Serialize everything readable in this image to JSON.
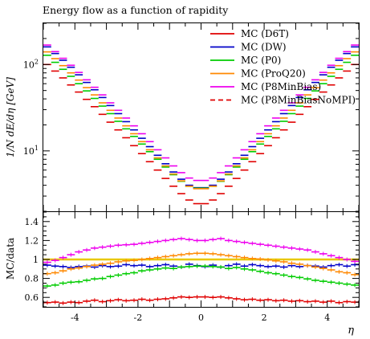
{
  "chart_data": {
    "type": "line",
    "style": "step-histogram",
    "title": "Energy flow as a function of rapidity",
    "xlabel": "η",
    "ylabel": "1/N dE/dη [GeV]",
    "ratio_ylabel": "MC/data",
    "xlim": [
      -5,
      5
    ],
    "ylim": [
      2,
      300
    ],
    "yscale": "log",
    "ratio_ylim": [
      0.5,
      1.5
    ],
    "x_ticks": [
      -4,
      -2,
      0,
      2,
      4
    ],
    "x_tick_labels": [
      "-4",
      "-2",
      "0",
      "2",
      "4"
    ],
    "y_tick_labels": [
      {
        "base": "10",
        "exp": "2",
        "value": 100
      },
      {
        "base": "10",
        "exp": "1",
        "value": 10
      }
    ],
    "ratio_ticks": [
      0.6,
      0.8,
      1.0,
      1.2,
      1.4
    ],
    "ratio_tick_labels": [
      "0.6",
      "0.8",
      "1",
      "1.2",
      "1.4"
    ],
    "grid": false,
    "legend_position": "top-right",
    "reference_line_color": "#e8c800",
    "series": [
      {
        "name": "MC (D6T)",
        "color": "#e00000",
        "dash": false,
        "x": [
          -4.875,
          -4.625,
          -4.375,
          -4.125,
          -3.875,
          -3.625,
          -3.375,
          -3.125,
          -2.875,
          -2.625,
          -2.375,
          -2.125,
          -1.875,
          -1.625,
          -1.375,
          -1.125,
          -0.875,
          -0.625,
          -0.375,
          -0.125,
          0.125,
          0.375,
          0.625,
          0.875,
          1.125,
          1.375,
          1.625,
          1.875,
          2.125,
          2.375,
          2.625,
          2.875,
          3.125,
          3.375,
          3.625,
          3.875,
          4.125,
          4.375,
          4.625,
          4.875
        ],
        "y": [
          100,
          84,
          70,
          58,
          48,
          39.5,
          32.5,
          26.5,
          21.5,
          17.5,
          14.2,
          11.5,
          9.3,
          7.5,
          6.0,
          4.8,
          3.9,
          3.2,
          2.7,
          2.45,
          2.45,
          2.7,
          3.2,
          3.9,
          4.8,
          6.0,
          7.5,
          9.3,
          11.5,
          14.2,
          17.5,
          21.5,
          26.5,
          32.5,
          39.5,
          48,
          58,
          70,
          84,
          100
        ],
        "ratio": [
          0.545,
          0.55,
          0.54,
          0.55,
          0.545,
          0.56,
          0.57,
          0.555,
          0.565,
          0.575,
          0.565,
          0.57,
          0.58,
          0.57,
          0.58,
          0.585,
          0.595,
          0.605,
          0.6,
          0.605,
          0.605,
          0.6,
          0.605,
          0.595,
          0.585,
          0.575,
          0.58,
          0.57,
          0.575,
          0.565,
          0.57,
          0.56,
          0.565,
          0.555,
          0.56,
          0.55,
          0.56,
          0.545,
          0.555,
          0.55
        ]
      },
      {
        "name": "MC (DW)",
        "color": "#0000c8",
        "dash": false,
        "x": [
          -4.875,
          -4.625,
          -4.375,
          -4.125,
          -3.875,
          -3.625,
          -3.375,
          -3.125,
          -2.875,
          -2.625,
          -2.375,
          -2.125,
          -1.875,
          -1.625,
          -1.375,
          -1.125,
          -0.875,
          -0.625,
          -0.375,
          -0.125,
          0.125,
          0.375,
          0.625,
          0.875,
          1.125,
          1.375,
          1.625,
          1.875,
          2.125,
          2.375,
          2.625,
          2.875,
          3.125,
          3.375,
          3.625,
          3.875,
          4.125,
          4.375,
          4.625,
          4.875
        ],
        "y": [
          160,
          134,
          112,
          93,
          76,
          62,
          51,
          41.5,
          33.5,
          27,
          21.8,
          17.5,
          14,
          11.2,
          8.9,
          7.1,
          5.7,
          4.7,
          4.0,
          3.75,
          3.75,
          4.0,
          4.7,
          5.7,
          7.1,
          8.9,
          11.2,
          14,
          17.5,
          21.8,
          27,
          33.5,
          41.5,
          51,
          62,
          76,
          93,
          112,
          134,
          160
        ],
        "ratio": [
          0.94,
          0.93,
          0.925,
          0.915,
          0.925,
          0.93,
          0.92,
          0.935,
          0.925,
          0.93,
          0.945,
          0.935,
          0.94,
          0.925,
          0.935,
          0.945,
          0.93,
          0.92,
          0.95,
          0.935,
          0.925,
          0.94,
          0.92,
          0.935,
          0.95,
          0.93,
          0.945,
          0.935,
          0.925,
          0.93,
          0.92,
          0.935,
          0.925,
          0.935,
          0.93,
          0.92,
          0.935,
          0.945,
          0.93,
          0.945
        ]
      },
      {
        "name": "MC (P0)",
        "color": "#00cc00",
        "dash": false,
        "x": [
          -4.875,
          -4.625,
          -4.375,
          -4.125,
          -3.875,
          -3.625,
          -3.375,
          -3.125,
          -2.875,
          -2.625,
          -2.375,
          -2.125,
          -1.875,
          -1.625,
          -1.375,
          -1.125,
          -0.875,
          -0.625,
          -0.375,
          -0.125,
          0.125,
          0.375,
          0.625,
          0.875,
          1.125,
          1.375,
          1.625,
          1.875,
          2.125,
          2.375,
          2.625,
          2.875,
          3.125,
          3.375,
          3.625,
          3.875,
          4.125,
          4.375,
          4.625,
          4.875
        ],
        "y": [
          128,
          106,
          88,
          73,
          60,
          49.5,
          40.5,
          33,
          27,
          22,
          18,
          14.7,
          12,
          9.8,
          8.0,
          6.5,
          5.3,
          4.45,
          3.9,
          3.7,
          3.7,
          3.9,
          4.45,
          5.3,
          6.5,
          8.0,
          9.8,
          12,
          14.7,
          18,
          22,
          27,
          33,
          40.5,
          49.5,
          60,
          73,
          88,
          106,
          128
        ],
        "ratio": [
          0.72,
          0.73,
          0.75,
          0.76,
          0.765,
          0.78,
          0.795,
          0.8,
          0.82,
          0.835,
          0.85,
          0.86,
          0.88,
          0.89,
          0.9,
          0.91,
          0.905,
          0.92,
          0.925,
          0.93,
          0.93,
          0.925,
          0.92,
          0.905,
          0.915,
          0.9,
          0.89,
          0.875,
          0.86,
          0.85,
          0.835,
          0.82,
          0.81,
          0.795,
          0.78,
          0.77,
          0.76,
          0.75,
          0.74,
          0.73
        ]
      },
      {
        "name": "MC (ProQ20)",
        "color": "#ff8800",
        "dash": false,
        "x": [
          -4.875,
          -4.625,
          -4.375,
          -4.125,
          -3.875,
          -3.625,
          -3.375,
          -3.125,
          -2.875,
          -2.625,
          -2.375,
          -2.125,
          -1.875,
          -1.625,
          -1.375,
          -1.125,
          -0.875,
          -0.625,
          -0.375,
          -0.125,
          0.125,
          0.375,
          0.625,
          0.875,
          1.125,
          1.375,
          1.625,
          1.875,
          2.125,
          2.375,
          2.625,
          2.875,
          3.125,
          3.375,
          3.625,
          3.875,
          4.125,
          4.375,
          4.625,
          4.875
        ],
        "y": [
          140,
          117,
          97,
          80,
          66,
          54,
          44.5,
          36,
          29.5,
          24,
          19.5,
          15.8,
          12.8,
          10.3,
          8.3,
          6.7,
          5.4,
          4.5,
          3.9,
          3.65,
          3.65,
          3.9,
          4.5,
          5.4,
          6.7,
          8.3,
          10.3,
          12.8,
          15.8,
          19.5,
          24,
          29.5,
          36,
          44.5,
          54,
          66,
          80,
          97,
          117,
          140
        ],
        "ratio": [
          0.85,
          0.86,
          0.88,
          0.9,
          0.91,
          0.925,
          0.94,
          0.95,
          0.96,
          0.975,
          0.985,
          0.99,
          1.0,
          1.01,
          1.02,
          1.03,
          1.04,
          1.05,
          1.06,
          1.065,
          1.065,
          1.06,
          1.05,
          1.04,
          1.03,
          1.02,
          1.01,
          1.005,
          0.995,
          0.985,
          0.975,
          0.96,
          0.95,
          0.935,
          0.92,
          0.905,
          0.89,
          0.87,
          0.86,
          0.84
        ]
      },
      {
        "name": "MC (P8MinBias)",
        "color": "#ee00ee",
        "dash": false,
        "x": [
          -4.875,
          -4.625,
          -4.375,
          -4.125,
          -3.875,
          -3.625,
          -3.375,
          -3.125,
          -2.875,
          -2.625,
          -2.375,
          -2.125,
          -1.875,
          -1.625,
          -1.375,
          -1.125,
          -0.875,
          -0.625,
          -0.375,
          -0.125,
          0.125,
          0.375,
          0.625,
          0.875,
          1.125,
          1.375,
          1.625,
          1.875,
          2.125,
          2.375,
          2.625,
          2.875,
          3.125,
          3.375,
          3.625,
          3.875,
          4.125,
          4.375,
          4.625,
          4.875
        ],
        "y": [
          168,
          141,
          118,
          98,
          81,
          66.5,
          54.5,
          44.5,
          36,
          29.5,
          24,
          19.5,
          15.8,
          12.8,
          10.3,
          8.3,
          6.7,
          5.6,
          4.85,
          4.55,
          4.55,
          4.85,
          5.6,
          6.7,
          8.3,
          10.3,
          12.8,
          15.8,
          19.5,
          24,
          29.5,
          36,
          44.5,
          54.5,
          66.5,
          81,
          98,
          118,
          141,
          168
        ],
        "ratio": [
          0.97,
          0.99,
          1.02,
          1.05,
          1.08,
          1.1,
          1.12,
          1.13,
          1.14,
          1.15,
          1.155,
          1.16,
          1.17,
          1.18,
          1.19,
          1.2,
          1.21,
          1.22,
          1.21,
          1.2,
          1.2,
          1.21,
          1.22,
          1.2,
          1.19,
          1.18,
          1.17,
          1.16,
          1.15,
          1.14,
          1.13,
          1.12,
          1.11,
          1.1,
          1.08,
          1.06,
          1.04,
          1.02,
          1.0,
          0.98
        ]
      },
      {
        "name": "MC (P8MinBiasNoMPI)",
        "color": "#e00000",
        "dash": true,
        "x": [],
        "y": [],
        "ratio": []
      }
    ]
  }
}
